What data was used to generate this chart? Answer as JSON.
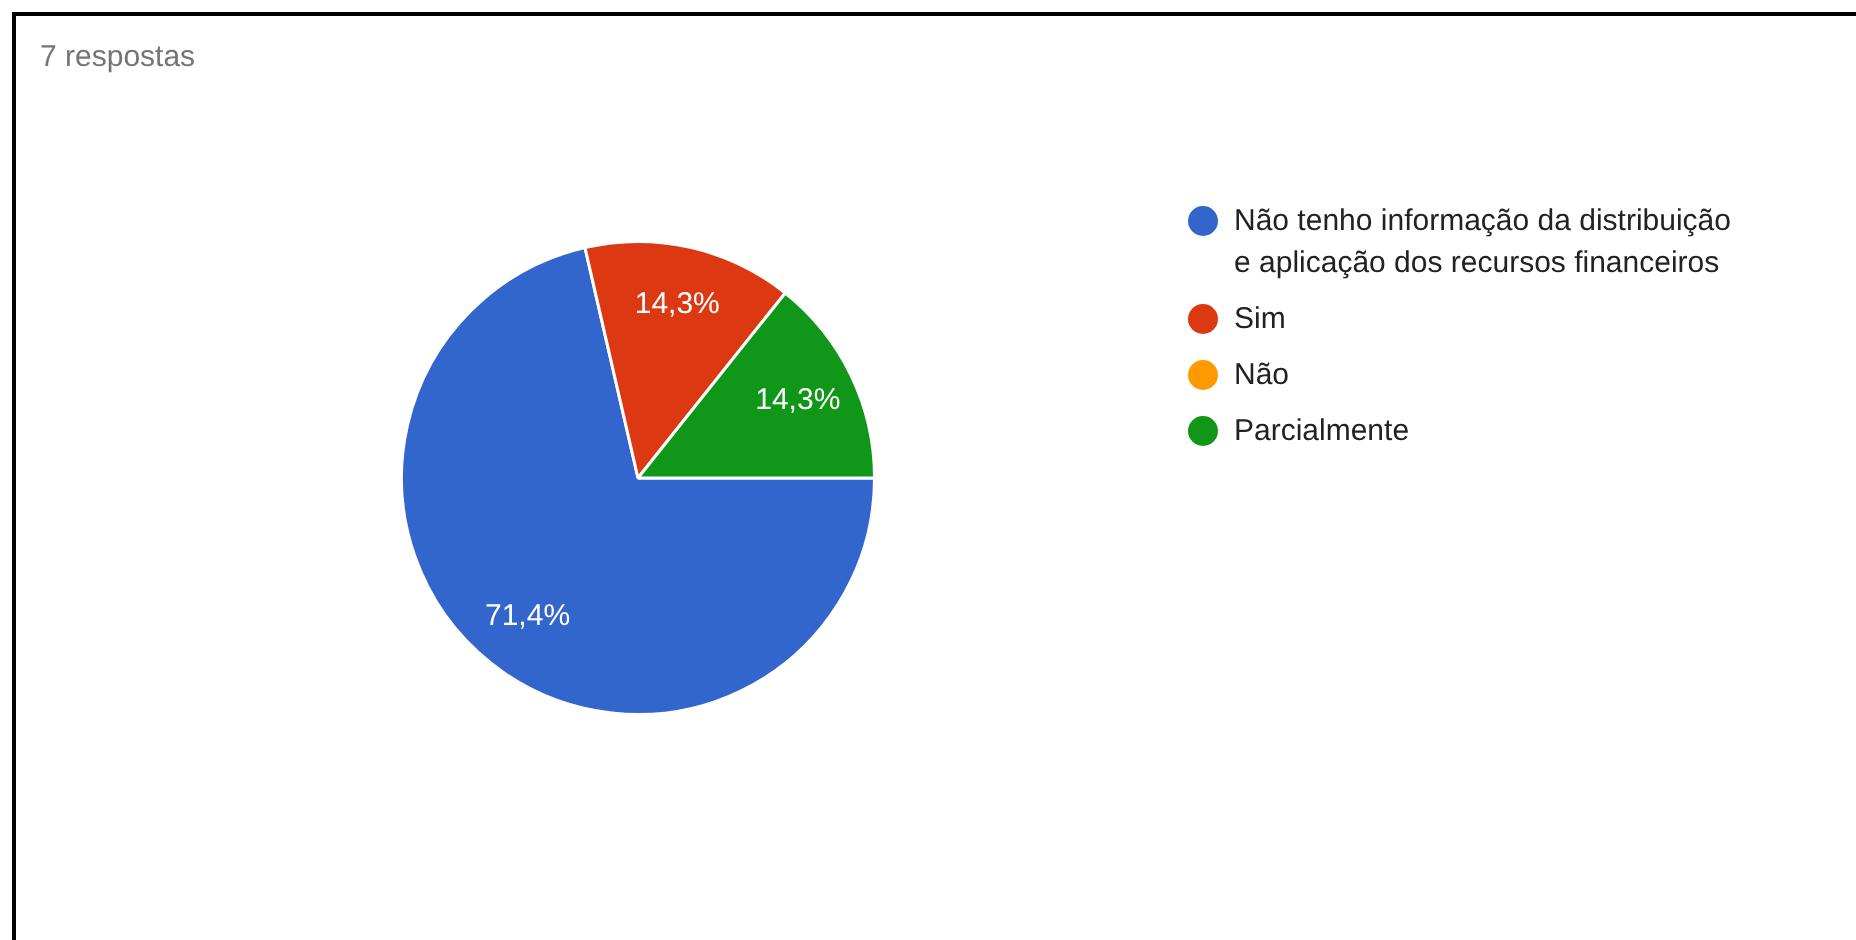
{
  "chart_data": {
    "type": "pie",
    "subtitle": "7 respostas",
    "categories": [
      "Não tenho informação da distribuição e aplicação dos recursos financeiros",
      "Sim",
      "Não",
      "Parcialmente"
    ],
    "values": [
      71.4,
      14.3,
      0,
      14.3
    ],
    "colors": [
      "#3366cc",
      "#dc3912",
      "#ff9900",
      "#109618"
    ],
    "value_labels": [
      "71,4%",
      "14,3%",
      null,
      "14,3%"
    ],
    "legend": "right"
  }
}
